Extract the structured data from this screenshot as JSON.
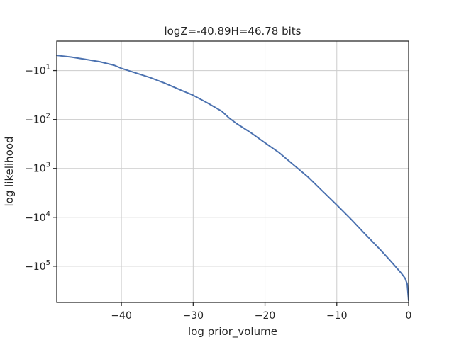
{
  "chart_data": {
    "type": "line",
    "title": "logZ=-40.89H=46.78 bits",
    "xlabel": "log prior_volume",
    "ylabel": "log likelihood",
    "xlim": [
      -49,
      0
    ],
    "y_scale": "symlog",
    "y_label_note": "y axis shows negative log likelihood on a log-magnitude scale",
    "ylim_magnitude": [
      2.5,
      550000
    ],
    "grid": true,
    "line_color": "#4c72b0",
    "x_ticks": [
      {
        "value": -40,
        "label": "−40"
      },
      {
        "value": -30,
        "label": "−30"
      },
      {
        "value": -20,
        "label": "−20"
      },
      {
        "value": -10,
        "label": "−10"
      },
      {
        "value": 0,
        "label": "0"
      }
    ],
    "y_ticks": [
      {
        "magnitude": 10,
        "base": "−10",
        "exp": "1"
      },
      {
        "magnitude": 100,
        "base": "−10",
        "exp": "2"
      },
      {
        "magnitude": 1000,
        "base": "−10",
        "exp": "3"
      },
      {
        "magnitude": 10000,
        "base": "−10",
        "exp": "4"
      },
      {
        "magnitude": 100000,
        "base": "−10",
        "exp": "5"
      }
    ],
    "series": [
      {
        "x": [
          -49,
          -47,
          -45,
          -43,
          -41,
          -40,
          -38,
          -36,
          -34,
          -32,
          -30,
          -28,
          -26,
          -25,
          -24,
          -22,
          -20,
          -18,
          -16,
          -14,
          -12,
          -10,
          -8,
          -6,
          -4,
          -3,
          -2,
          -1,
          -0.5,
          -0.2,
          0
        ],
        "magnitude": [
          4.9,
          5.3,
          5.9,
          6.6,
          7.8,
          9.0,
          11.2,
          13.9,
          18.0,
          24.1,
          32.0,
          46.0,
          68.0,
          93.0,
          120.0,
          185.0,
          300.0,
          480.0,
          850.0,
          1500.0,
          2900.0,
          5600.0,
          11000.0,
          22500.0,
          45000.0,
          65000.0,
          95000.0,
          140000.0,
          175000.0,
          230000.0,
          500000.0
        ]
      }
    ]
  }
}
